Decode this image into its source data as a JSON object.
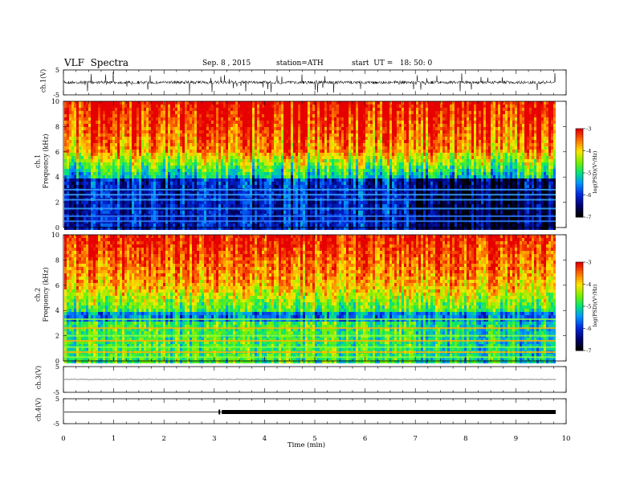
{
  "header": {
    "title": "VLF  Spectra",
    "date": "Sep. 8 , 2015",
    "station": "station=ATH",
    "start_ut": "start  UT =   18: 50: 0"
  },
  "chart_data": [
    {
      "type": "line",
      "panel": "ch1-waveform",
      "ylabel": "ch.1(V)",
      "yticks": [
        "5",
        "-5"
      ],
      "ylim": [
        -5,
        5
      ],
      "xlim": [
        0,
        10
      ],
      "color": "#000000"
    },
    {
      "type": "heatmap",
      "panel": "ch1-spectrogram",
      "ylabel_top": "ch.1",
      "ylabel": "Frequency  (kHz)",
      "yticks": [
        "0",
        "2",
        "4",
        "6",
        "8",
        "10"
      ],
      "ylim": [
        0,
        10
      ],
      "xlim": [
        0,
        10
      ],
      "colorbar_label": "log(PSD)(V²/Hz)",
      "colorbar_ticks": [
        "-3",
        "-4",
        "-5",
        "-6",
        "-7"
      ],
      "colorbar_range": [
        -7,
        -3
      ],
      "bands_khz": [
        0.5,
        0.9,
        1.5,
        2.2,
        2.6,
        3.0
      ]
    },
    {
      "type": "heatmap",
      "panel": "ch2-spectrogram",
      "ylabel_top": "ch.2",
      "ylabel": "Frequency  (kHz)",
      "yticks": [
        "0",
        "2",
        "4",
        "6",
        "8",
        "10"
      ],
      "ylim": [
        0,
        10
      ],
      "xlim": [
        0,
        10
      ],
      "colorbar_label": "log(PSD)(V²/Hz)",
      "colorbar_ticks": [
        "-3",
        "-4",
        "-5",
        "-6",
        "-7"
      ],
      "colorbar_range": [
        -7,
        -3
      ],
      "bands_khz": [
        0.3,
        0.7,
        1.1,
        1.6,
        2.0,
        2.6,
        3.3
      ]
    },
    {
      "type": "line",
      "panel": "ch3-waveform",
      "ylabel": "ch.3(V)",
      "yticks": [
        "5",
        "-5"
      ],
      "ylim": [
        -5,
        5
      ],
      "xlim": [
        0,
        10
      ],
      "color": "#000000"
    },
    {
      "type": "line",
      "panel": "ch4-waveform",
      "ylabel": "ch.4(V)",
      "yticks": [
        "5",
        "-5"
      ],
      "ylim": [
        -5,
        5
      ],
      "xlim": [
        0,
        10
      ],
      "xlabel": "Time  (min)",
      "xticks": [
        "0",
        "1",
        "2",
        "3",
        "4",
        "5",
        "6",
        "7",
        "8",
        "9",
        "10"
      ],
      "step_time_min": 3.15,
      "color": "#000000"
    }
  ]
}
